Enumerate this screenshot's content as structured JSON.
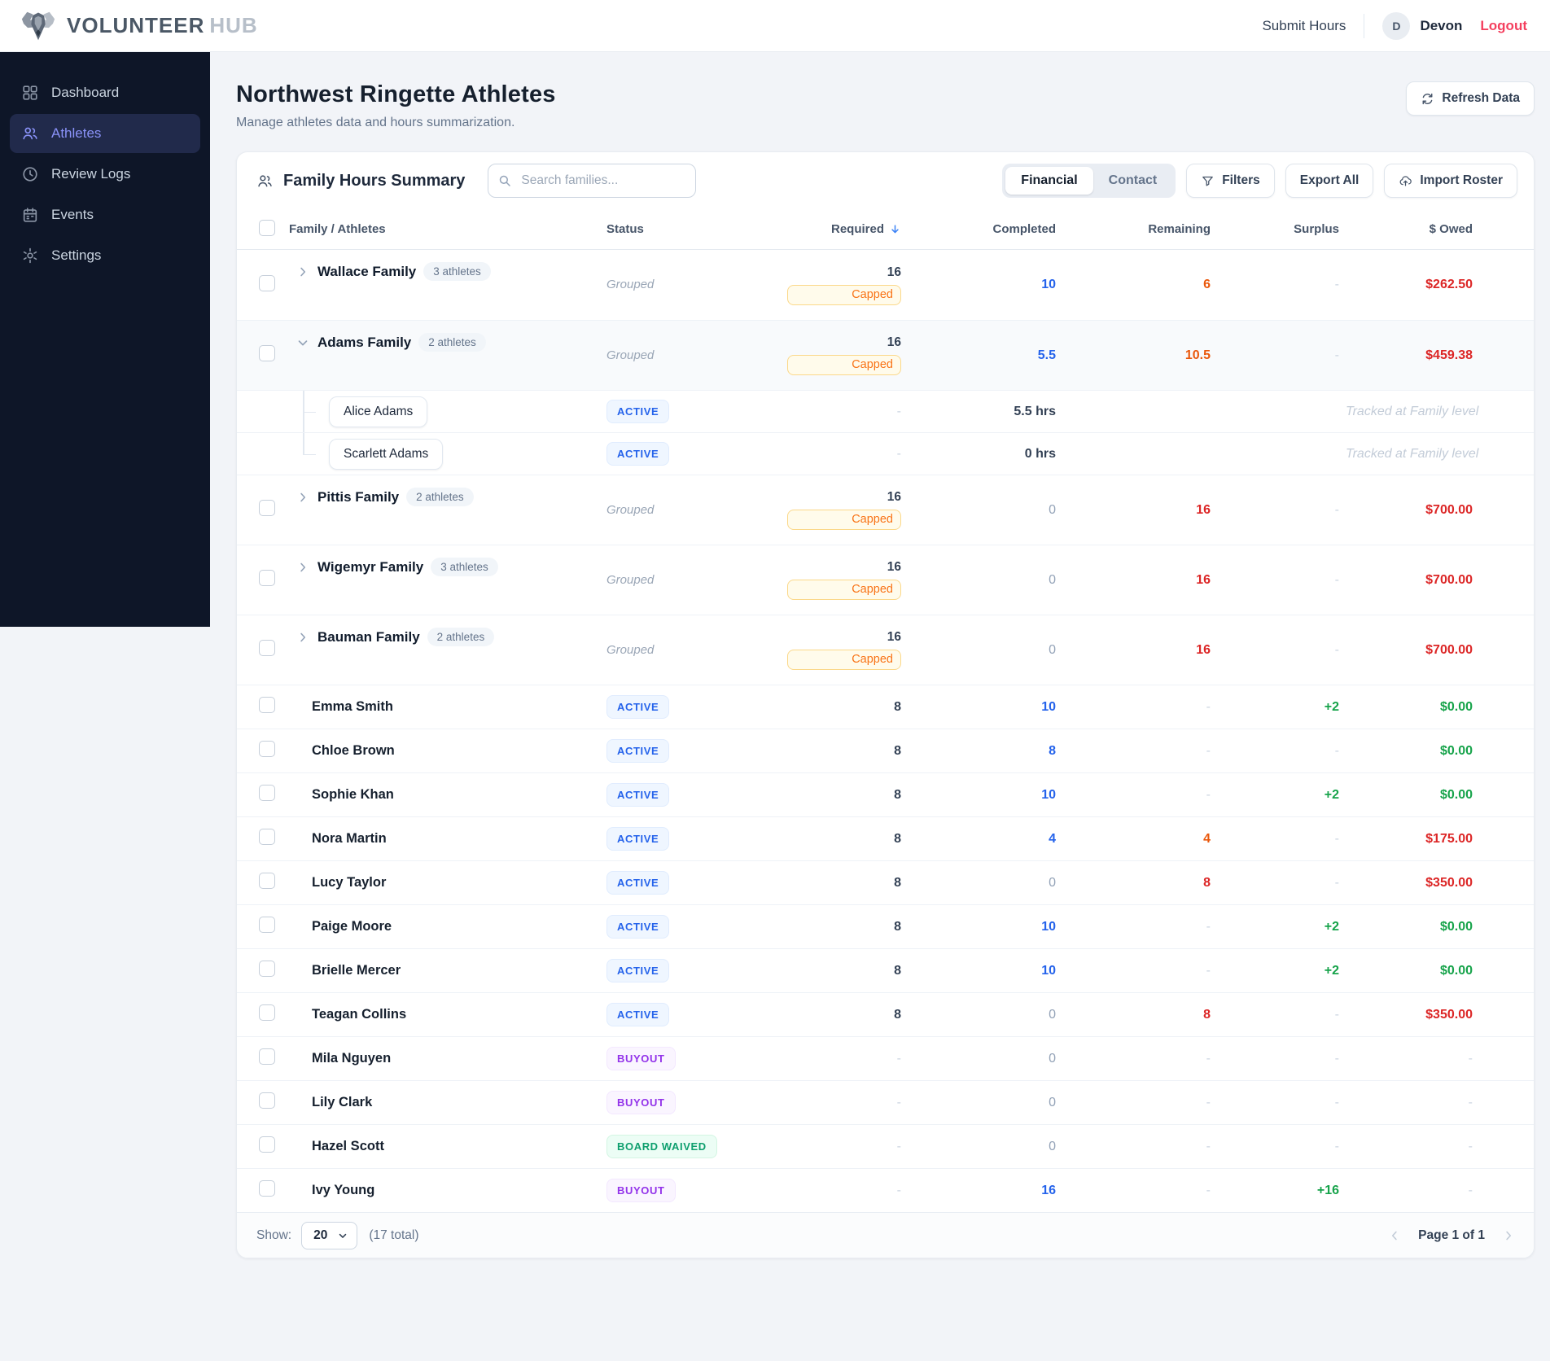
{
  "header": {
    "brand_primary": "VOLUNTEER",
    "brand_secondary": "HUB",
    "submit_hours_label": "Submit Hours",
    "user": {
      "initial": "D",
      "name": "Devon"
    },
    "logout_label": "Logout"
  },
  "sidebar": {
    "items": [
      {
        "label": "Dashboard",
        "icon": "dashboard-icon",
        "active": false
      },
      {
        "label": "Athletes",
        "icon": "athletes-icon",
        "active": true
      },
      {
        "label": "Review Logs",
        "icon": "clock-icon",
        "active": false
      },
      {
        "label": "Events",
        "icon": "calendar-icon",
        "active": false
      },
      {
        "label": "Settings",
        "icon": "gear-icon",
        "active": false
      }
    ]
  },
  "page": {
    "title": "Northwest Ringette Athletes",
    "subtitle": "Manage athletes data and hours summarization.",
    "refresh_label": "Refresh Data"
  },
  "toolbar": {
    "panel_title": "Family Hours Summary",
    "search_placeholder": "Search families...",
    "view_toggle": [
      "Financial",
      "Contact"
    ],
    "active_view": "Financial",
    "filters_label": "Filters",
    "export_label": "Export All",
    "import_label": "Import Roster"
  },
  "table": {
    "columns": [
      "Family / Athletes",
      "Status",
      "Required",
      "Completed",
      "Remaining",
      "Surplus",
      "$ Owed"
    ],
    "sort_column": "Required",
    "sort_direction": "desc",
    "labels": {
      "capped": "Capped",
      "tracked_note": "Tracked at Family level"
    },
    "rows": [
      {
        "kind": "family",
        "name": "Wallace Family",
        "count_label": "3 athletes",
        "expanded": false,
        "status": {
          "text": "Grouped",
          "style": "grouped"
        },
        "required": {
          "text": "16",
          "capped": true
        },
        "completed": {
          "text": "10",
          "tone": "blue"
        },
        "remaining": {
          "text": "6",
          "tone": "orange"
        },
        "surplus": {
          "text": "-",
          "tone": "dash"
        },
        "owed": {
          "text": "$262.50",
          "tone": "red"
        }
      },
      {
        "kind": "family",
        "name": "Adams Family",
        "count_label": "2 athletes",
        "expanded": true,
        "status": {
          "text": "Grouped",
          "style": "grouped"
        },
        "required": {
          "text": "16",
          "capped": true
        },
        "completed": {
          "text": "5.5",
          "tone": "blue"
        },
        "remaining": {
          "text": "10.5",
          "tone": "orange"
        },
        "surplus": {
          "text": "-",
          "tone": "dash"
        },
        "owed": {
          "text": "$459.38",
          "tone": "red"
        }
      },
      {
        "kind": "child",
        "name": "Alice Adams",
        "status": {
          "text": "ACTIVE",
          "style": "active"
        },
        "required": {
          "text": "-",
          "tone": "dash"
        },
        "completed": {
          "text": "5.5 hrs",
          "tone": "plain"
        },
        "remaining": {
          "text": "",
          "tone": "dash"
        },
        "surplus": {
          "text": "",
          "tone": "dash"
        },
        "owed": {
          "text": "Tracked at Family level",
          "tone": "note"
        }
      },
      {
        "kind": "child",
        "name": "Scarlett Adams",
        "status": {
          "text": "ACTIVE",
          "style": "active"
        },
        "required": {
          "text": "-",
          "tone": "dash"
        },
        "completed": {
          "text": "0 hrs",
          "tone": "plain"
        },
        "remaining": {
          "text": "",
          "tone": "dash"
        },
        "surplus": {
          "text": "",
          "tone": "dash"
        },
        "owed": {
          "text": "Tracked at Family level",
          "tone": "note"
        }
      },
      {
        "kind": "family",
        "name": "Pittis Family",
        "count_label": "2 athletes",
        "expanded": false,
        "status": {
          "text": "Grouped",
          "style": "grouped"
        },
        "required": {
          "text": "16",
          "capped": true
        },
        "completed": {
          "text": "0",
          "tone": "muted"
        },
        "remaining": {
          "text": "16",
          "tone": "red"
        },
        "surplus": {
          "text": "-",
          "tone": "dash"
        },
        "owed": {
          "text": "$700.00",
          "tone": "red"
        }
      },
      {
        "kind": "family",
        "name": "Wigemyr Family",
        "count_label": "3 athletes",
        "expanded": false,
        "status": {
          "text": "Grouped",
          "style": "grouped"
        },
        "required": {
          "text": "16",
          "capped": true
        },
        "completed": {
          "text": "0",
          "tone": "muted"
        },
        "remaining": {
          "text": "16",
          "tone": "red"
        },
        "surplus": {
          "text": "-",
          "tone": "dash"
        },
        "owed": {
          "text": "$700.00",
          "tone": "red"
        }
      },
      {
        "kind": "family",
        "name": "Bauman Family",
        "count_label": "2 athletes",
        "expanded": false,
        "status": {
          "text": "Grouped",
          "style": "grouped"
        },
        "required": {
          "text": "16",
          "capped": true
        },
        "completed": {
          "text": "0",
          "tone": "muted"
        },
        "remaining": {
          "text": "16",
          "tone": "red"
        },
        "surplus": {
          "text": "-",
          "tone": "dash"
        },
        "owed": {
          "text": "$700.00",
          "tone": "red"
        }
      },
      {
        "kind": "athlete",
        "name": "Emma Smith",
        "status": {
          "text": "ACTIVE",
          "style": "active"
        },
        "required": {
          "text": "8",
          "tone": "plain"
        },
        "completed": {
          "text": "10",
          "tone": "blue"
        },
        "remaining": {
          "text": "-",
          "tone": "dash"
        },
        "surplus": {
          "text": "+2",
          "tone": "green"
        },
        "owed": {
          "text": "$0.00",
          "tone": "green"
        }
      },
      {
        "kind": "athlete",
        "name": "Chloe Brown",
        "status": {
          "text": "ACTIVE",
          "style": "active"
        },
        "required": {
          "text": "8",
          "tone": "plain"
        },
        "completed": {
          "text": "8",
          "tone": "blue"
        },
        "remaining": {
          "text": "-",
          "tone": "dash"
        },
        "surplus": {
          "text": "-",
          "tone": "dash"
        },
        "owed": {
          "text": "$0.00",
          "tone": "green"
        }
      },
      {
        "kind": "athlete",
        "name": "Sophie Khan",
        "status": {
          "text": "ACTIVE",
          "style": "active"
        },
        "required": {
          "text": "8",
          "tone": "plain"
        },
        "completed": {
          "text": "10",
          "tone": "blue"
        },
        "remaining": {
          "text": "-",
          "tone": "dash"
        },
        "surplus": {
          "text": "+2",
          "tone": "green"
        },
        "owed": {
          "text": "$0.00",
          "tone": "green"
        }
      },
      {
        "kind": "athlete",
        "name": "Nora Martin",
        "status": {
          "text": "ACTIVE",
          "style": "active"
        },
        "required": {
          "text": "8",
          "tone": "plain"
        },
        "completed": {
          "text": "4",
          "tone": "blue"
        },
        "remaining": {
          "text": "4",
          "tone": "orange"
        },
        "surplus": {
          "text": "-",
          "tone": "dash"
        },
        "owed": {
          "text": "$175.00",
          "tone": "red"
        }
      },
      {
        "kind": "athlete",
        "name": "Lucy Taylor",
        "status": {
          "text": "ACTIVE",
          "style": "active"
        },
        "required": {
          "text": "8",
          "tone": "plain"
        },
        "completed": {
          "text": "0",
          "tone": "muted"
        },
        "remaining": {
          "text": "8",
          "tone": "red"
        },
        "surplus": {
          "text": "-",
          "tone": "dash"
        },
        "owed": {
          "text": "$350.00",
          "tone": "red"
        }
      },
      {
        "kind": "athlete",
        "name": "Paige Moore",
        "status": {
          "text": "ACTIVE",
          "style": "active"
        },
        "required": {
          "text": "8",
          "tone": "plain"
        },
        "completed": {
          "text": "10",
          "tone": "blue"
        },
        "remaining": {
          "text": "-",
          "tone": "dash"
        },
        "surplus": {
          "text": "+2",
          "tone": "green"
        },
        "owed": {
          "text": "$0.00",
          "tone": "green"
        }
      },
      {
        "kind": "athlete",
        "name": "Brielle Mercer",
        "status": {
          "text": "ACTIVE",
          "style": "active"
        },
        "required": {
          "text": "8",
          "tone": "plain"
        },
        "completed": {
          "text": "10",
          "tone": "blue"
        },
        "remaining": {
          "text": "-",
          "tone": "dash"
        },
        "surplus": {
          "text": "+2",
          "tone": "green"
        },
        "owed": {
          "text": "$0.00",
          "tone": "green"
        }
      },
      {
        "kind": "athlete",
        "name": "Teagan Collins",
        "status": {
          "text": "ACTIVE",
          "style": "active"
        },
        "required": {
          "text": "8",
          "tone": "plain"
        },
        "completed": {
          "text": "0",
          "tone": "muted"
        },
        "remaining": {
          "text": "8",
          "tone": "red"
        },
        "surplus": {
          "text": "-",
          "tone": "dash"
        },
        "owed": {
          "text": "$350.00",
          "tone": "red"
        }
      },
      {
        "kind": "athlete",
        "name": "Mila Nguyen",
        "status": {
          "text": "BUYOUT",
          "style": "buyout"
        },
        "required": {
          "text": "-",
          "tone": "dash"
        },
        "completed": {
          "text": "0",
          "tone": "muted"
        },
        "remaining": {
          "text": "-",
          "tone": "dash"
        },
        "surplus": {
          "text": "-",
          "tone": "dash"
        },
        "owed": {
          "text": "-",
          "tone": "dash"
        }
      },
      {
        "kind": "athlete",
        "name": "Lily Clark",
        "status": {
          "text": "BUYOUT",
          "style": "buyout"
        },
        "required": {
          "text": "-",
          "tone": "dash"
        },
        "completed": {
          "text": "0",
          "tone": "muted"
        },
        "remaining": {
          "text": "-",
          "tone": "dash"
        },
        "surplus": {
          "text": "-",
          "tone": "dash"
        },
        "owed": {
          "text": "-",
          "tone": "dash"
        }
      },
      {
        "kind": "athlete",
        "name": "Hazel Scott",
        "status": {
          "text": "BOARD WAIVED",
          "style": "waived"
        },
        "required": {
          "text": "-",
          "tone": "dash"
        },
        "completed": {
          "text": "0",
          "tone": "muted"
        },
        "remaining": {
          "text": "-",
          "tone": "dash"
        },
        "surplus": {
          "text": "-",
          "tone": "dash"
        },
        "owed": {
          "text": "-",
          "tone": "dash"
        }
      },
      {
        "kind": "athlete",
        "name": "Ivy Young",
        "status": {
          "text": "BUYOUT",
          "style": "buyout"
        },
        "required": {
          "text": "-",
          "tone": "dash"
        },
        "completed": {
          "text": "16",
          "tone": "blue"
        },
        "remaining": {
          "text": "-",
          "tone": "dash"
        },
        "surplus": {
          "text": "+16",
          "tone": "green"
        },
        "owed": {
          "text": "-",
          "tone": "dash"
        }
      }
    ]
  },
  "footer": {
    "show_label": "Show:",
    "page_size": "20",
    "total_label": "(17 total)",
    "page_label": "Page 1 of 1"
  },
  "colors": {
    "sidebar_bg": "#0e1628",
    "active_nav": "#8a92f8",
    "completed_blue": "#2563eb",
    "remaining_orange": "#ea580c",
    "remaining_red": "#dc2626",
    "surplus_green": "#16a34a",
    "owed_red": "#dc2626",
    "owed_green": "#16a34a",
    "capped_amber": "#f97316",
    "buyout_purple": "#9333ea",
    "waived_green": "#0e9f6e",
    "logout_red": "#f43f5e"
  }
}
